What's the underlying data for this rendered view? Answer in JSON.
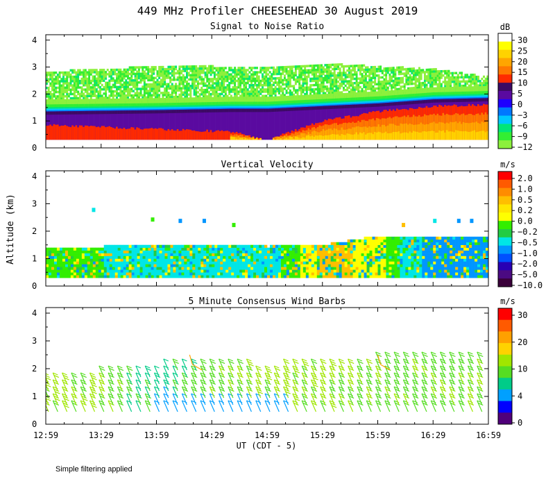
{
  "figure": {
    "title": "449 MHz Profiler CHEESEHEAD 30 August 2019",
    "footnote": "Simple filtering applied",
    "shared_ylabel": "Altitude (km)",
    "shared_xlabel": "UT  (CDT - 5)"
  },
  "chart_data": [
    {
      "type": "heatmap",
      "title": "Signal to Noise Ratio",
      "ylabel": "Altitude (km)",
      "xlabel": "",
      "x_tick_labels": [],
      "y_ticks": [
        0,
        1,
        2,
        3,
        4
      ],
      "ylim": [
        0,
        4.2
      ],
      "xlim": [
        0,
        240
      ],
      "colorbar": {
        "unit": "dB",
        "labels": [
          "30",
          "25",
          "20",
          "15",
          "10",
          "5",
          "0",
          "−3",
          "−6",
          "−9",
          "−12"
        ],
        "colors": [
          "#ffffff",
          "#ffff00",
          "#ffd200",
          "#ffa500",
          "#ff7800",
          "#ff2a00",
          "#3c0a64",
          "#5a0aa0",
          "#1e00ff",
          "#0078ff",
          "#00c8ff",
          "#00e678",
          "#33ee33",
          "#8cf03c"
        ]
      },
      "x_anchor_min": [
        0,
        60,
        100,
        120,
        150,
        180,
        210,
        240
      ],
      "layers": [
        {
          "label": "−12 (green noise fringe top)",
          "top_km": [
            2.8,
            3.0,
            3.0,
            3.0,
            3.1,
            3.0,
            2.9,
            2.6
          ]
        },
        {
          "label": "0 to 5 (purple)",
          "top_km": [
            1.35,
            1.4,
            1.45,
            1.45,
            1.55,
            1.65,
            1.8,
            1.85
          ]
        },
        {
          "label": "10 (red)",
          "top_km": [
            0.85,
            0.7,
            0.6,
            0.3,
            1.0,
            1.35,
            1.55,
            1.6
          ]
        }
      ],
      "lowest_gate_km": 0.3
    },
    {
      "type": "heatmap",
      "title": "Vertical Velocity",
      "ylabel": "Altitude (km)",
      "xlabel": "",
      "x_tick_labels": [],
      "y_ticks": [
        0,
        1,
        2,
        3,
        4
      ],
      "ylim": [
        0,
        4.2
      ],
      "xlim": [
        0,
        240
      ],
      "colorbar": {
        "unit": "m/s",
        "labels": [
          "2.0",
          "1.0",
          "0.5",
          "0.2",
          "0.0",
          "−0.2",
          "−0.5",
          "−1.0",
          "−2.0",
          "−5.0",
          "−10.0"
        ],
        "colors": [
          "#ff0000",
          "#ff5a00",
          "#ff8c00",
          "#ffbe00",
          "#ffe600",
          "#ffff00",
          "#33ee00",
          "#22cc44",
          "#00e6e6",
          "#0096ff",
          "#0050ff",
          "#2800b4",
          "#4b0a82",
          "#3a003a"
        ]
      },
      "x_anchor_min": [
        0,
        60,
        120,
        150,
        180,
        210,
        240
      ],
      "data_top_km": [
        1.35,
        1.45,
        1.4,
        1.45,
        1.8,
        1.8,
        1.8
      ],
      "lowest_gate_km": 0.3,
      "dominant_velocity_ms": [
        -0.2,
        -0.5,
        -0.5,
        0.2,
        0.0,
        -1.0,
        -1.0
      ]
    },
    {
      "type": "scatter",
      "title": "5 Minute Consensus Wind Barbs",
      "ylabel": "Altitude (km)",
      "xlabel": "UT  (CDT - 5)",
      "x_tick_labels": [
        "12:59",
        "13:29",
        "13:59",
        "14:29",
        "14:59",
        "15:29",
        "15:59",
        "16:29",
        "16:59"
      ],
      "y_ticks": [
        0,
        1,
        2,
        3,
        4
      ],
      "ylim": [
        0,
        4.2
      ],
      "xlim": [
        0,
        240
      ],
      "interval_min": 5,
      "colorbar": {
        "unit": "m/s",
        "labels": [
          "30",
          "20",
          "10",
          "4",
          "0"
        ],
        "colors": [
          "#ff0000",
          "#ff5a00",
          "#ffa000",
          "#ffd200",
          "#a0e600",
          "#55dd22",
          "#00cc88",
          "#00a0ff",
          "#0000ff",
          "#50007a"
        ]
      },
      "barb_top_km": [
        1.6,
        1.7,
        1.9,
        2.1,
        1.9,
        2.1,
        2.2,
        2.2
      ],
      "barb_top_anchor_min": [
        0,
        30,
        60,
        80,
        120,
        150,
        180,
        240
      ],
      "typical_speed_ms": [
        12,
        11,
        6,
        9,
        12,
        11,
        10,
        10
      ]
    }
  ]
}
